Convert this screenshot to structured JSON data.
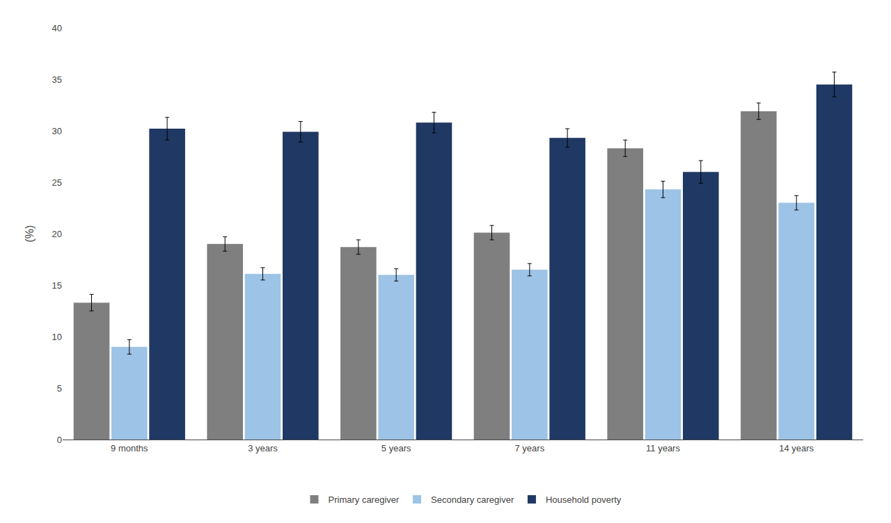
{
  "chart_data": {
    "type": "bar",
    "categories": [
      "9 months",
      "3 years",
      "5 years",
      "7 years",
      "11 years",
      "14 years"
    ],
    "series": [
      {
        "name": "Primary caregiver",
        "color": "#7F7F7F",
        "values": [
          13.3,
          19.0,
          18.7,
          20.1,
          28.3,
          31.9
        ],
        "errors": [
          0.8,
          0.7,
          0.7,
          0.7,
          0.8,
          0.8
        ]
      },
      {
        "name": "Secondary caregiver",
        "color": "#9DC3E6",
        "values": [
          9.0,
          16.1,
          16.0,
          16.5,
          24.3,
          23.0
        ],
        "errors": [
          0.7,
          0.6,
          0.6,
          0.6,
          0.8,
          0.7
        ]
      },
      {
        "name": "Household poverty",
        "color": "#1F3864",
        "values": [
          30.2,
          29.9,
          30.8,
          29.3,
          26.0,
          34.5
        ],
        "errors": [
          1.1,
          1.0,
          1.0,
          0.9,
          1.1,
          1.2
        ]
      }
    ],
    "ylabel": "(%)",
    "ylim": [
      0,
      40
    ],
    "yticks": [
      0,
      5,
      10,
      15,
      20,
      25,
      30,
      35,
      40
    ],
    "grid": false,
    "legend": "bottom"
  }
}
